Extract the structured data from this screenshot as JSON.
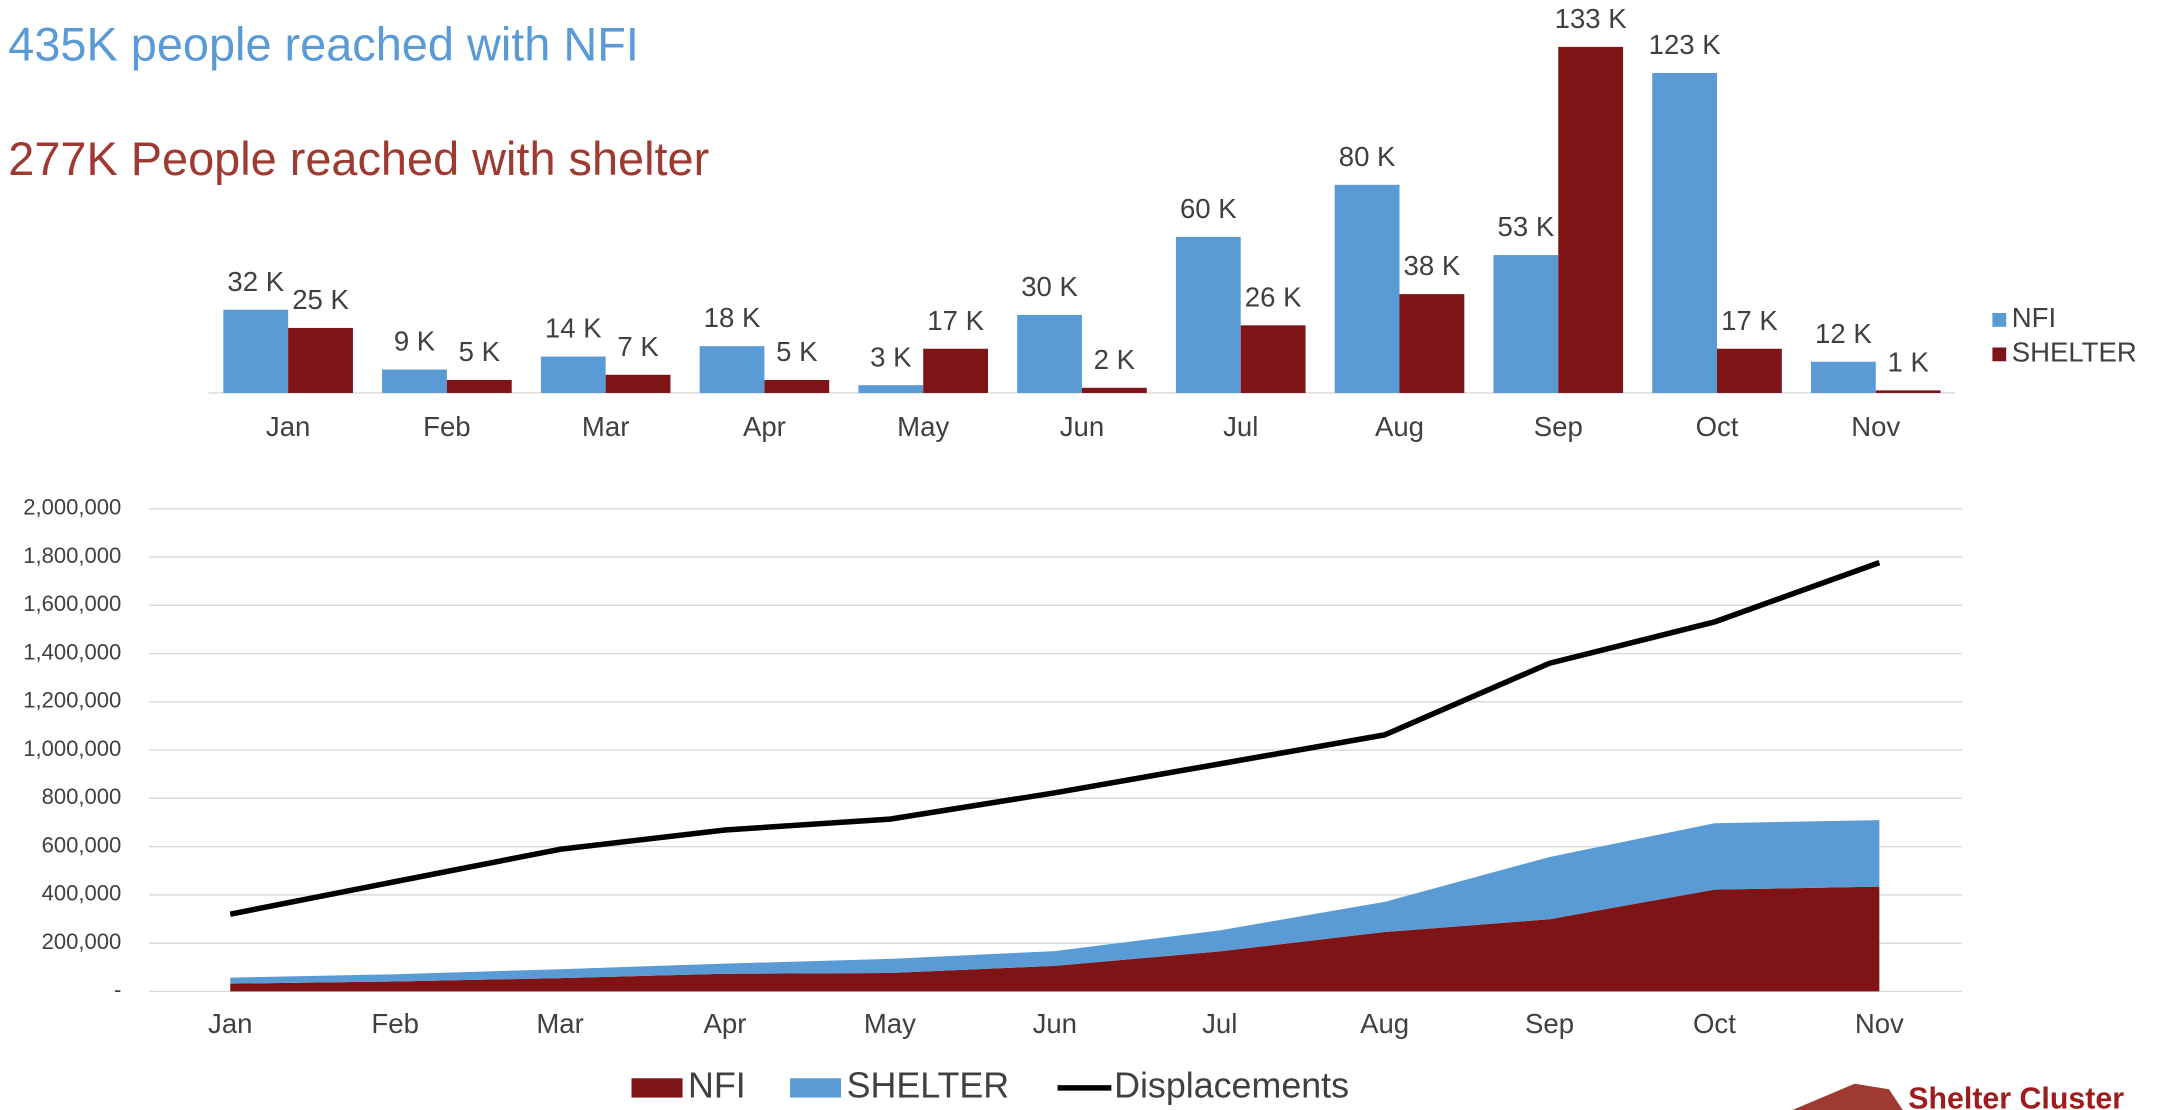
{
  "header": {
    "nfi_total": "435K people reached with NFI",
    "shelter_total": "277K People reached with shelter"
  },
  "chart_data": [
    {
      "type": "bar",
      "categories": [
        "Jan",
        "Feb",
        "Mar",
        "Apr",
        "May",
        "Jun",
        "Jul",
        "Aug",
        "Sep",
        "Oct",
        "Nov"
      ],
      "series": [
        {
          "name": "NFI",
          "color": "#5b9bd5",
          "values": [
            32,
            9,
            14,
            18,
            3,
            30,
            60,
            80,
            53,
            123,
            12
          ],
          "value_labels": [
            "32 K",
            "9 K",
            "14 K",
            "18 K",
            "3 K",
            "30 K",
            "60 K",
            "80 K",
            "53 K",
            "123 K",
            "12 K"
          ]
        },
        {
          "name": "SHELTER",
          "color": "#7f1416",
          "values": [
            25,
            5,
            7,
            5,
            17,
            2,
            26,
            38,
            133,
            17,
            1
          ],
          "value_labels": [
            "25 K",
            "5 K",
            "7 K",
            "5 K",
            "17 K",
            "2 K",
            "26 K",
            "38 K",
            "133 K",
            "17 K",
            "1 K"
          ]
        }
      ],
      "legend": "right"
    },
    {
      "type": "area",
      "categories": [
        "Jan",
        "Feb",
        "Mar",
        "Apr",
        "May",
        "Jun",
        "Jul",
        "Aug",
        "Sep",
        "Oct",
        "Nov"
      ],
      "series": [
        {
          "name": "NFI",
          "color": "#7f1416",
          "values": [
            32000,
            41000,
            55000,
            73000,
            76000,
            106000,
            166000,
            246000,
            299000,
            422000,
            434000
          ]
        },
        {
          "name": "SHELTER",
          "color": "#5b9bd5",
          "values": [
            25000,
            30000,
            37000,
            42000,
            59000,
            61000,
            87000,
            125000,
            258000,
            275000,
            276000
          ]
        },
        {
          "name": "Displacements",
          "type": "line",
          "color": "#000000",
          "values": [
            320000,
            455000,
            589000,
            669000,
            714000,
            823000,
            943000,
            1063000,
            1360000,
            1531000,
            1777000
          ]
        }
      ],
      "ylim": [
        0,
        2000000
      ],
      "yticks": [
        {
          "value": 0,
          "label": "-"
        },
        {
          "value": 200000,
          "label": "200,000"
        },
        {
          "value": 400000,
          "label": "400,000"
        },
        {
          "value": 600000,
          "label": "600,000"
        },
        {
          "value": 800000,
          "label": "800,000"
        },
        {
          "value": 1000000,
          "label": "1,000,000"
        },
        {
          "value": 1200000,
          "label": "1,200,000"
        },
        {
          "value": 1400000,
          "label": "1,400,000"
        },
        {
          "value": 1600000,
          "label": "1,600,000"
        },
        {
          "value": 1800000,
          "label": "1,800,000"
        },
        {
          "value": 2000000,
          "label": "2,000,000"
        }
      ],
      "grid": true,
      "legend": "bottom"
    }
  ],
  "logo": "Shelter Cluster"
}
